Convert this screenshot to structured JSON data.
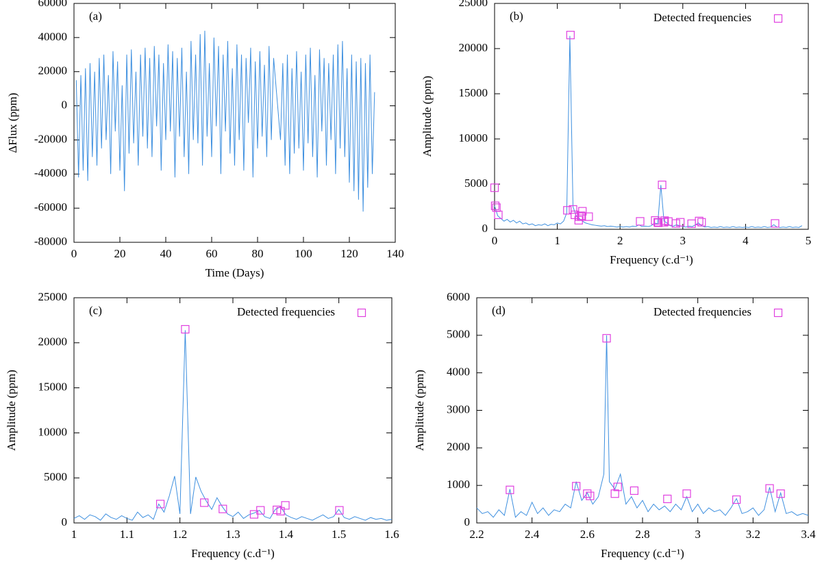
{
  "chart_data": [
    {
      "type": "line",
      "label": "(a)",
      "x_label": "Time (Days)",
      "y_label": "ΔFlux (ppm)",
      "xlim": [
        0,
        140
      ],
      "ylim": [
        -80000,
        60000
      ],
      "xticks": [
        0,
        20,
        40,
        60,
        80,
        100,
        120,
        140
      ],
      "yticks": [
        -80000,
        -60000,
        -40000,
        -20000,
        0,
        20000,
        40000,
        60000
      ],
      "x": [
        1,
        2,
        3,
        4,
        5,
        6,
        7,
        8,
        9,
        10,
        11,
        12,
        13,
        14,
        15,
        16,
        17,
        18,
        19,
        20,
        21,
        22,
        23,
        24,
        25,
        26,
        27,
        28,
        29,
        30,
        31,
        32,
        33,
        34,
        35,
        36,
        37,
        38,
        39,
        40,
        41,
        42,
        43,
        44,
        45,
        46,
        47,
        48,
        49,
        50,
        51,
        52,
        53,
        54,
        55,
        56,
        57,
        58,
        59,
        60,
        61,
        62,
        63,
        64,
        65,
        66,
        67,
        68,
        69,
        70,
        71,
        72,
        73,
        74,
        75,
        76,
        77,
        78,
        79,
        80,
        81,
        82,
        83,
        84,
        85,
        86,
        87,
        90,
        91,
        92,
        93,
        94,
        95,
        96,
        97,
        98,
        99,
        100,
        101,
        102,
        103,
        104,
        105,
        106,
        107,
        108,
        109,
        110,
        111,
        112,
        113,
        114,
        115,
        116,
        117,
        118,
        119,
        120,
        121,
        122,
        123,
        124,
        125,
        126,
        127,
        128,
        129,
        130,
        131
      ],
      "series": [
        {
          "color": "#3d8fdf",
          "values": [
            15000,
            -42000,
            18000,
            -38000,
            22000,
            -44000,
            25000,
            -30000,
            20000,
            -35000,
            28000,
            -25000,
            30000,
            -20000,
            18000,
            -40000,
            32000,
            -15000,
            26000,
            -38000,
            12000,
            -50000,
            30000,
            -28000,
            33000,
            -22000,
            20000,
            -35000,
            30000,
            -18000,
            34000,
            -25000,
            28000,
            -30000,
            35000,
            -12000,
            30000,
            -38000,
            25000,
            -20000,
            36000,
            -15000,
            32000,
            -42000,
            28000,
            -18000,
            34000,
            -30000,
            20000,
            -40000,
            38000,
            -20000,
            30000,
            -22000,
            42000,
            -35000,
            44000,
            -18000,
            25000,
            -30000,
            40000,
            -12000,
            35000,
            -40000,
            30000,
            -15000,
            38000,
            -28000,
            22000,
            -35000,
            36000,
            -20000,
            30000,
            -38000,
            28000,
            -10000,
            34000,
            -42000,
            26000,
            -25000,
            32000,
            -18000,
            24000,
            -30000,
            35000,
            -20000,
            28000,
            -20000,
            25000,
            -35000,
            30000,
            -40000,
            22000,
            -28000,
            32000,
            -25000,
            20000,
            -38000,
            30000,
            -22000,
            34000,
            -30000,
            18000,
            -42000,
            33000,
            -15000,
            28000,
            -35000,
            25000,
            -20000,
            30000,
            -40000,
            36000,
            -25000,
            38000,
            -30000,
            22000,
            -45000,
            30000,
            -50000,
            26000,
            -55000,
            28000,
            -62000,
            25000,
            -48000,
            30000,
            -40000,
            8000
          ]
        }
      ]
    },
    {
      "type": "line",
      "label": "(b)",
      "x_label": "Frequency (c.d⁻¹)",
      "y_label": "Amplitude (ppm)",
      "legend": "upper right",
      "xlim": [
        0,
        5
      ],
      "ylim": [
        0,
        25000
      ],
      "xticks": [
        0,
        1,
        2,
        3,
        4,
        5
      ],
      "yticks": [
        0,
        5000,
        10000,
        15000,
        20000,
        25000
      ],
      "x": [
        0,
        0.05,
        0.1,
        0.15,
        0.2,
        0.25,
        0.3,
        0.35,
        0.4,
        0.45,
        0.5,
        0.55,
        0.6,
        0.65,
        0.7,
        0.75,
        0.8,
        0.85,
        0.9,
        0.95,
        1,
        1.05,
        1.1,
        1.15,
        1.2,
        1.25,
        1.3,
        1.35,
        1.4,
        1.45,
        1.5,
        1.55,
        1.6,
        1.65,
        1.7,
        1.75,
        1.8,
        1.85,
        1.9,
        1.95,
        2,
        2.05,
        2.1,
        2.15,
        2.2,
        2.25,
        2.3,
        2.35,
        2.4,
        2.45,
        2.5,
        2.55,
        2.6,
        2.65,
        2.7,
        2.75,
        2.8,
        2.85,
        2.9,
        2.95,
        3,
        3.05,
        3.1,
        3.15,
        3.2,
        3.25,
        3.3,
        3.35,
        3.4,
        3.45,
        3.5,
        3.55,
        3.6,
        3.65,
        3.7,
        3.75,
        3.8,
        3.85,
        3.9,
        3.95,
        4,
        4.05,
        4.1,
        4.15,
        4.2,
        4.25,
        4.3,
        4.35,
        4.4,
        4.45,
        4.5,
        4.55,
        4.6,
        4.65,
        4.7,
        4.75,
        4.8,
        4.85,
        4.9
      ],
      "series": [
        {
          "color": "#3d8fdf",
          "values": [
            2600,
            1500,
            1200,
            900,
            1100,
            800,
            1000,
            700,
            900,
            600,
            700,
            500,
            600,
            400,
            500,
            450,
            600,
            400,
            550,
            500,
            700,
            600,
            900,
            1800,
            21400,
            2500,
            1500,
            1200,
            900,
            700,
            600,
            500,
            450,
            400,
            350,
            400,
            300,
            350,
            300,
            250,
            300,
            250,
            300,
            250,
            350,
            300,
            500,
            300,
            350,
            300,
            400,
            700,
            600,
            4900,
            900,
            700,
            400,
            350,
            500,
            400,
            300,
            250,
            350,
            300,
            500,
            700,
            400,
            250,
            300,
            200,
            250,
            200,
            300,
            200,
            250,
            200,
            300,
            200,
            250,
            200,
            250,
            200,
            300,
            200,
            250,
            200,
            300,
            200,
            250,
            500,
            250,
            200,
            250,
            200,
            300,
            200,
            250,
            200,
            400
          ]
        },
        {
          "type": "scatter",
          "name": "Detected frequencies",
          "color": "#e040e0",
          "x": [
            0,
            0.01,
            0.03,
            0.06,
            1.16,
            1.21,
            1.25,
            1.28,
            1.34,
            1.35,
            1.38,
            1.39,
            1.4,
            1.5,
            2.32,
            2.56,
            2.6,
            2.61,
            2.67,
            2.7,
            2.71,
            2.77,
            2.89,
            2.96,
            3.14,
            3.26,
            3.3,
            4.47
          ],
          "values": [
            4600,
            2600,
            2400,
            1600,
            2100,
            21500,
            2200,
            1600,
            1000,
            1400,
            1500,
            1400,
            2000,
            1400,
            880,
            980,
            780,
            720,
            4920,
            780,
            960,
            860,
            640,
            780,
            620,
            920,
            780,
            650
          ]
        }
      ]
    },
    {
      "type": "line",
      "label": "(c)",
      "x_label": "Frequency (c.d⁻¹)",
      "y_label": "Amplitude (ppm)",
      "legend": "upper right",
      "xlim": [
        1,
        1.6
      ],
      "ylim": [
        0,
        25000
      ],
      "xticks": [
        1,
        1.1,
        1.2,
        1.3,
        1.4,
        1.5,
        1.6
      ],
      "yticks": [
        0,
        5000,
        10000,
        15000,
        20000,
        25000
      ],
      "x": [
        1,
        1.01,
        1.02,
        1.03,
        1.04,
        1.05,
        1.06,
        1.07,
        1.08,
        1.09,
        1.1,
        1.11,
        1.12,
        1.13,
        1.14,
        1.15,
        1.16,
        1.17,
        1.18,
        1.19,
        1.2,
        1.21,
        1.22,
        1.23,
        1.24,
        1.25,
        1.26,
        1.27,
        1.28,
        1.29,
        1.3,
        1.31,
        1.32,
        1.33,
        1.34,
        1.35,
        1.36,
        1.37,
        1.38,
        1.39,
        1.4,
        1.41,
        1.42,
        1.43,
        1.44,
        1.45,
        1.46,
        1.47,
        1.48,
        1.49,
        1.5,
        1.51,
        1.52,
        1.53,
        1.54,
        1.55,
        1.56,
        1.57,
        1.58,
        1.59,
        1.6
      ],
      "series": [
        {
          "color": "#3d8fdf",
          "values": [
            500,
            800,
            400,
            900,
            700,
            300,
            1000,
            600,
            400,
            800,
            500,
            300,
            1200,
            600,
            900,
            400,
            2100,
            1200,
            3000,
            5200,
            1000,
            21400,
            1000,
            5100,
            3500,
            2400,
            1500,
            2800,
            1800,
            1000,
            700,
            1200,
            500,
            900,
            1100,
            1400,
            700,
            500,
            1500,
            1800,
            900,
            600,
            400,
            700,
            500,
            300,
            600,
            900,
            500,
            700,
            1500,
            600,
            400,
            700,
            500,
            300,
            600,
            400,
            500,
            300,
            400
          ]
        },
        {
          "type": "scatter",
          "name": "Detected frequencies",
          "color": "#e040e0",
          "x": [
            1.163,
            1.21,
            1.246,
            1.281,
            1.34,
            1.352,
            1.383,
            1.39,
            1.399,
            1.501
          ],
          "values": [
            2100,
            21500,
            2250,
            1550,
            950,
            1400,
            1450,
            1300,
            1950,
            1400
          ]
        }
      ]
    },
    {
      "type": "line",
      "label": "(d)",
      "x_label": "Frequency (c.d⁻¹)",
      "y_label": "Amplitude (ppm)",
      "legend": "upper right",
      "xlim": [
        2.2,
        3.4
      ],
      "ylim": [
        0,
        6000
      ],
      "xticks": [
        2.2,
        2.4,
        2.6,
        2.8,
        3,
        3.2,
        3.4
      ],
      "yticks": [
        0,
        1000,
        2000,
        3000,
        4000,
        5000,
        6000
      ],
      "x": [
        2.2,
        2.22,
        2.24,
        2.26,
        2.28,
        2.3,
        2.32,
        2.34,
        2.36,
        2.38,
        2.4,
        2.42,
        2.44,
        2.46,
        2.48,
        2.5,
        2.52,
        2.54,
        2.56,
        2.58,
        2.6,
        2.62,
        2.64,
        2.66,
        2.67,
        2.68,
        2.7,
        2.72,
        2.74,
        2.76,
        2.78,
        2.8,
        2.82,
        2.84,
        2.86,
        2.88,
        2.9,
        2.92,
        2.94,
        2.96,
        2.98,
        3,
        3.02,
        3.04,
        3.06,
        3.08,
        3.1,
        3.12,
        3.14,
        3.16,
        3.18,
        3.2,
        3.22,
        3.24,
        3.26,
        3.28,
        3.3,
        3.32,
        3.34,
        3.36,
        3.38,
        3.4
      ],
      "series": [
        {
          "color": "#3d8fdf",
          "values": [
            400,
            250,
            300,
            150,
            350,
            200,
            900,
            150,
            300,
            200,
            550,
            250,
            400,
            200,
            350,
            300,
            500,
            400,
            1100,
            600,
            800,
            500,
            700,
            1300,
            5000,
            1100,
            900,
            1300,
            500,
            700,
            400,
            600,
            300,
            500,
            350,
            450,
            300,
            500,
            350,
            700,
            300,
            500,
            250,
            400,
            300,
            350,
            200,
            400,
            650,
            250,
            300,
            400,
            200,
            350,
            950,
            300,
            800,
            250,
            300,
            200,
            250,
            200
          ]
        },
        {
          "type": "scatter",
          "name": "Detected frequencies",
          "color": "#e040e0",
          "x": [
            2.32,
            2.56,
            2.6,
            2.61,
            2.67,
            2.7,
            2.71,
            2.77,
            2.89,
            2.96,
            3.14,
            3.26,
            3.3
          ],
          "values": [
            880,
            980,
            780,
            720,
            4920,
            780,
            960,
            860,
            640,
            780,
            620,
            920,
            780
          ]
        }
      ]
    }
  ]
}
